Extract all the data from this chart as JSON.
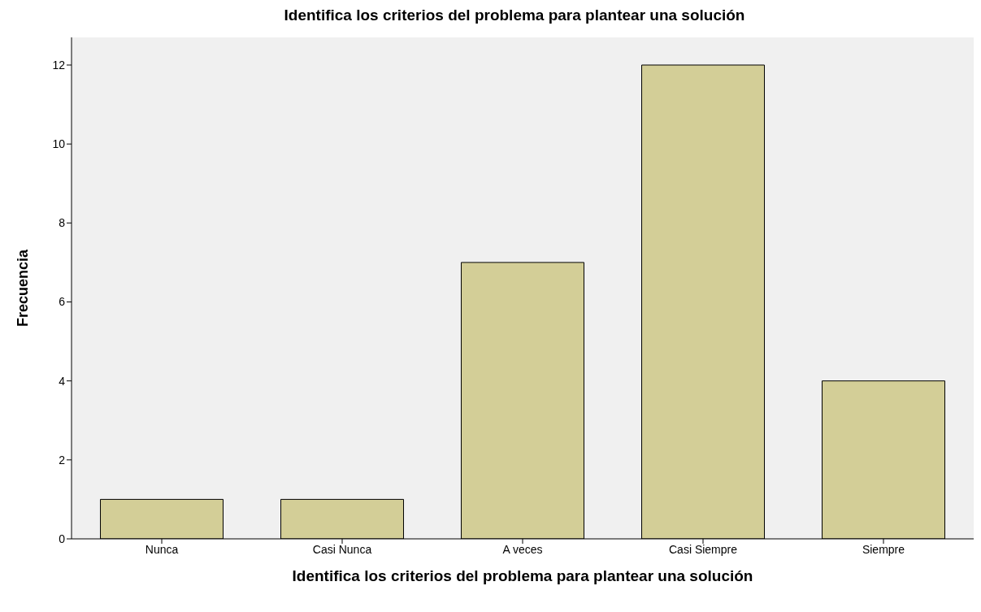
{
  "chart_data": {
    "type": "bar",
    "title": "Identifica los criterios del problema para plantear una solución",
    "xlabel": "Identifica los criterios del problema para plantear una solución",
    "ylabel": "Frecuencia",
    "categories": [
      "Nunca",
      "Casi Nunca",
      "A veces",
      "Casi Siempre",
      "Siempre"
    ],
    "values": [
      1,
      1,
      7,
      12,
      4
    ],
    "color": "#d3ce97",
    "ylim": [
      0,
      12.7
    ],
    "yticks": [
      0,
      2,
      4,
      6,
      8,
      10,
      12
    ],
    "grid": false,
    "legend": false
  }
}
